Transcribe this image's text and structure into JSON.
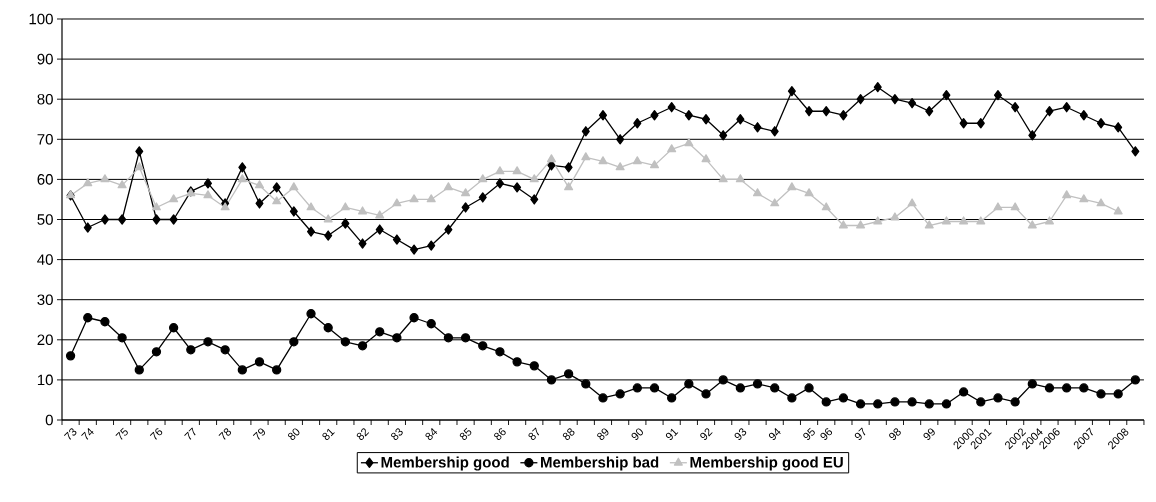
{
  "chart_data": {
    "type": "line",
    "categories": [
      "73",
      "74",
      null,
      "75",
      null,
      "76",
      null,
      "77",
      null,
      "78",
      null,
      "79",
      null,
      "80",
      null,
      "81",
      null,
      "82",
      null,
      "83",
      null,
      "84",
      null,
      "85",
      null,
      "86",
      null,
      "87",
      null,
      "88",
      null,
      "89",
      null,
      "90",
      null,
      "91",
      null,
      "92",
      null,
      "93",
      null,
      "94",
      null,
      "95",
      "96",
      null,
      "97",
      null,
      "98",
      null,
      "99",
      null,
      "2000",
      "2001",
      null,
      "2002",
      "2004",
      "2006",
      null,
      "2007",
      null,
      "2008",
      null
    ],
    "series": [
      {
        "name": "Membership good",
        "color": "#000000",
        "marker": "diamond",
        "values": [
          56,
          48,
          50,
          50,
          67,
          50,
          50,
          57,
          59,
          54,
          63,
          54,
          58,
          52,
          47,
          46,
          49,
          44,
          47.5,
          45,
          42.5,
          43.5,
          47.5,
          53,
          55.5,
          59,
          58,
          55,
          63.5,
          63,
          72,
          76,
          70,
          74,
          76,
          78,
          76,
          75,
          71,
          75,
          73,
          72,
          82,
          77,
          77,
          76,
          80,
          83,
          80,
          79,
          77,
          81,
          74,
          74,
          81,
          78,
          71,
          77,
          78,
          76,
          74,
          73,
          67
        ]
      },
      {
        "name": "Membership bad",
        "color": "#000000",
        "marker": "circle",
        "values": [
          16,
          25.5,
          24.5,
          20.5,
          12.5,
          17,
          23,
          17.5,
          19.5,
          17.5,
          12.5,
          14.5,
          12.5,
          19.5,
          26.5,
          23,
          19.5,
          18.5,
          22,
          20.5,
          25.5,
          24,
          20.5,
          20.5,
          18.5,
          17,
          14.5,
          13.5,
          10,
          11.5,
          9,
          5.5,
          6.5,
          8,
          8,
          5.5,
          9,
          6.5,
          10,
          8,
          9,
          8,
          5.5,
          8,
          4.5,
          5.5,
          4,
          4,
          4.5,
          4.5,
          4,
          4,
          7,
          4.5,
          5.5,
          4.5,
          9,
          8,
          8,
          8,
          6.5,
          6.5,
          10
        ]
      },
      {
        "name": "Membership good EU",
        "color": "#c0c0c0",
        "marker": "triangle",
        "values": [
          56,
          59,
          60,
          58.5,
          63,
          53,
          55,
          56.5,
          56,
          53,
          60,
          58.5,
          54.5,
          58,
          53,
          50,
          53,
          52,
          51,
          54,
          55,
          55,
          58,
          56.5,
          60,
          62,
          62,
          60,
          65,
          58,
          65.5,
          64.5,
          63,
          64.5,
          63.5,
          67.5,
          69,
          65,
          60,
          60,
          56.5,
          54,
          58,
          56.5,
          53,
          48.5,
          48.5,
          49.5,
          50.5,
          54,
          48.5,
          49.5,
          49.5,
          49.5,
          53,
          53,
          48.5,
          49.5,
          56,
          55,
          54,
          52,
          null
        ]
      }
    ],
    "ylim": [
      0,
      100
    ],
    "yticks": [
      0,
      10,
      20,
      30,
      40,
      50,
      60,
      70,
      80,
      90,
      100
    ],
    "grid": "y",
    "legend": "bottom"
  }
}
